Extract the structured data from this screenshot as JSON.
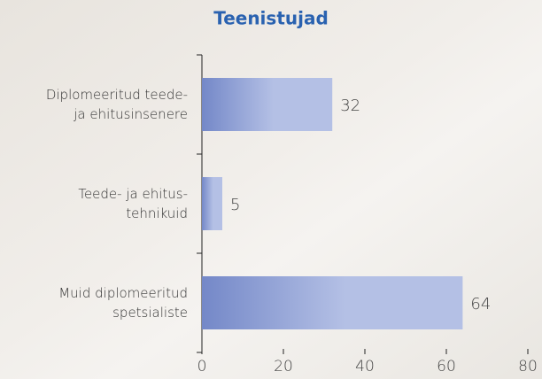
{
  "chart_data": {
    "type": "hbar",
    "title": "Teenistujad",
    "categories": [
      [
        "Diplomeeritud teede-",
        "ja ehitusinsenere"
      ],
      [
        "Teede- ja ehitus-",
        "tehnikuid"
      ],
      [
        "Muid diplomeeritud",
        "spetsialiste"
      ]
    ],
    "values": [
      32,
      5,
      64
    ],
    "color": [
      "#7488c8",
      "#b4c0e5"
    ],
    "xlim": [
      0,
      80
    ],
    "xticks": [
      0,
      20,
      40,
      60,
      80
    ]
  }
}
